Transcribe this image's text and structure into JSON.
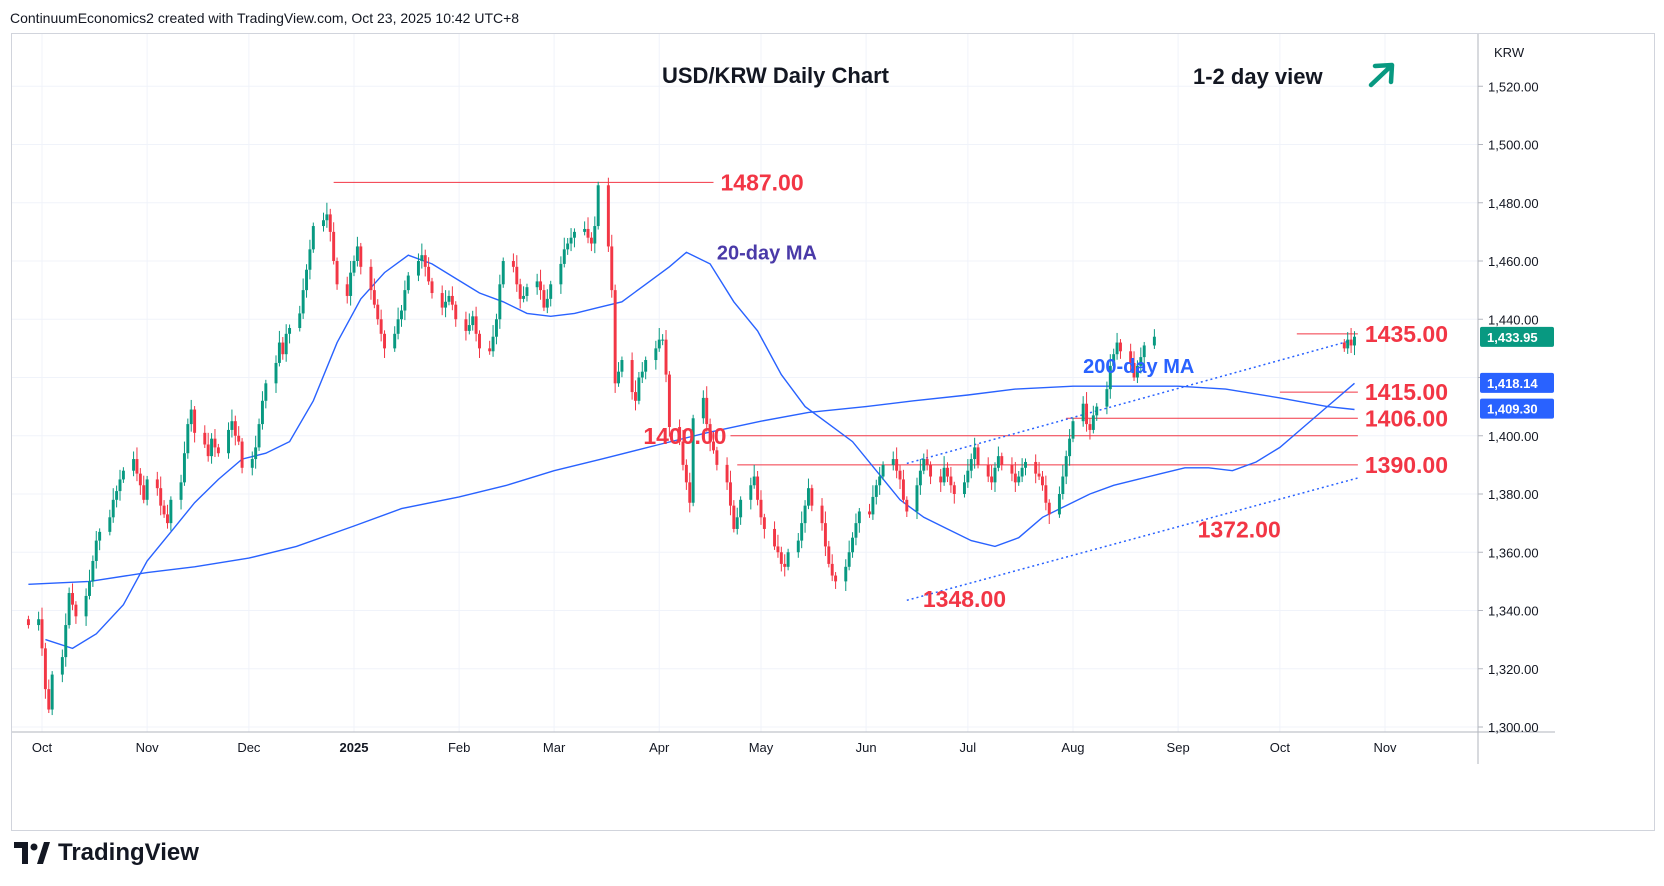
{
  "header": {
    "attribution": "ContinuumEconomics2 created with TradingView.com, Oct 23, 2025 10:42 UTC+8"
  },
  "footer": {
    "brand": "TradingView",
    "logo_icon": "tradingview-logo-icon"
  },
  "chart_data": {
    "type": "candlestick",
    "title": "USD/KRW Daily Chart",
    "view_label": "1-2 day view",
    "view_icon": "arrow-up-right-icon",
    "currency_label": "KRW",
    "ylim": [
      1300,
      1540
    ],
    "y_ticks": [
      "1,300.00",
      "1,320.00",
      "1,340.00",
      "1,360.00",
      "1,380.00",
      "1,400.00",
      "1,420.00",
      "1,440.00",
      "1,460.00",
      "1,480.00",
      "1,500.00",
      "1,520.00"
    ],
    "x_labels": [
      {
        "label": "Oct",
        "date": "2024-10-01"
      },
      {
        "label": "Nov",
        "date": "2024-11-01"
      },
      {
        "label": "Dec",
        "date": "2024-12-01"
      },
      {
        "label": "2025",
        "date": "2025-01-01",
        "bold": true
      },
      {
        "label": "Feb",
        "date": "2025-02-01"
      },
      {
        "label": "Mar",
        "date": "2025-03-01"
      },
      {
        "label": "Apr",
        "date": "2025-04-01"
      },
      {
        "label": "May",
        "date": "2025-05-01"
      },
      {
        "label": "Jun",
        "date": "2025-06-01"
      },
      {
        "label": "Jul",
        "date": "2025-07-01"
      },
      {
        "label": "Aug",
        "date": "2025-08-01"
      },
      {
        "label": "Sep",
        "date": "2025-09-01"
      },
      {
        "label": "Oct",
        "date": "2025-10-01"
      },
      {
        "label": "Nov",
        "date": "2025-11-01"
      }
    ],
    "colors": {
      "up": "#089981",
      "down": "#f23645",
      "ma20": "#2962ff",
      "ma200": "#2962ff",
      "levels": "#f23645",
      "channel": "#2962ff",
      "arrow": "#089981"
    },
    "price_badges": [
      {
        "value": 1433.95,
        "label": "1,433.95",
        "color": "#089981"
      },
      {
        "value": 1418.14,
        "label": "1,418.14",
        "color": "#2962ff"
      },
      {
        "value": 1409.3,
        "label": "1,409.30",
        "color": "#2962ff"
      }
    ],
    "levels": [
      {
        "value": 1487.0,
        "label": "1487.00",
        "from": "2024-12-26",
        "to": "2025-04-17",
        "label_side": "right"
      },
      {
        "value": 1435.0,
        "label": "1435.00",
        "from": "2025-10-06",
        "to": "2025-10-24",
        "label_side": "right"
      },
      {
        "value": 1415.0,
        "label": "1415.00",
        "from": "2025-10-01",
        "to": "2025-10-24",
        "label_side": "right"
      },
      {
        "value": 1406.0,
        "label": "1406.00",
        "from": "2025-07-30",
        "to": "2025-10-24",
        "label_side": "right"
      },
      {
        "value": 1400.0,
        "label": "1400.00",
        "from": "2025-04-22",
        "to": "2025-10-24",
        "label_side": "left"
      },
      {
        "value": 1390.0,
        "label": "1390.00",
        "from": "2025-04-24",
        "to": "2025-10-24",
        "label_side": "right"
      }
    ],
    "point_labels": [
      {
        "value": 1372.0,
        "label": "1372.00",
        "date": "2025-09-19"
      },
      {
        "value": 1348.0,
        "label": "1348.00",
        "date": "2025-06-30"
      }
    ],
    "channel_lines": [
      {
        "from": {
          "date": "2025-06-13",
          "value": 1390.5
        },
        "to": {
          "date": "2025-10-23",
          "value": 1433.0
        }
      },
      {
        "from": {
          "date": "2025-06-13",
          "value": 1343.5
        },
        "to": {
          "date": "2025-10-24",
          "value": 1385.5
        }
      }
    ],
    "ma_labels": [
      {
        "label": "20-day MA",
        "date": "2025-04-18",
        "value": 1460.5,
        "color": "#4a3aa8"
      },
      {
        "label": "200-day MA",
        "date": "2025-08-04",
        "value": 1421.5,
        "color": "#2962ff"
      }
    ],
    "series": [
      {
        "name": "20-day MA",
        "type": "line",
        "points": [
          [
            "2024-10-02",
            1330
          ],
          [
            "2024-10-10",
            1327
          ],
          [
            "2024-10-17",
            1332
          ],
          [
            "2024-10-25",
            1342
          ],
          [
            "2024-11-01",
            1357
          ],
          [
            "2024-11-08",
            1367
          ],
          [
            "2024-11-15",
            1377
          ],
          [
            "2024-11-22",
            1385
          ],
          [
            "2024-11-29",
            1392
          ],
          [
            "2024-12-06",
            1394
          ],
          [
            "2024-12-13",
            1398
          ],
          [
            "2024-12-20",
            1412
          ],
          [
            "2024-12-27",
            1432
          ],
          [
            "2025-01-03",
            1447
          ],
          [
            "2025-01-10",
            1456
          ],
          [
            "2025-01-17",
            1462
          ],
          [
            "2025-01-24",
            1459
          ],
          [
            "2025-01-31",
            1454
          ],
          [
            "2025-02-07",
            1449
          ],
          [
            "2025-02-14",
            1446
          ],
          [
            "2025-02-21",
            1442
          ],
          [
            "2025-02-28",
            1441
          ],
          [
            "2025-03-07",
            1442
          ],
          [
            "2025-03-14",
            1444
          ],
          [
            "2025-03-21",
            1446
          ],
          [
            "2025-03-28",
            1452
          ],
          [
            "2025-04-04",
            1458
          ],
          [
            "2025-04-09",
            1463
          ],
          [
            "2025-04-16",
            1459
          ],
          [
            "2025-04-23",
            1446
          ],
          [
            "2025-04-30",
            1436
          ],
          [
            "2025-05-07",
            1421
          ],
          [
            "2025-05-14",
            1410
          ],
          [
            "2025-05-21",
            1404
          ],
          [
            "2025-05-28",
            1398
          ],
          [
            "2025-06-04",
            1388
          ],
          [
            "2025-06-11",
            1378
          ],
          [
            "2025-06-18",
            1372
          ],
          [
            "2025-06-25",
            1368
          ],
          [
            "2025-07-02",
            1364
          ],
          [
            "2025-07-09",
            1362
          ],
          [
            "2025-07-16",
            1365
          ],
          [
            "2025-07-23",
            1372
          ],
          [
            "2025-07-30",
            1376
          ],
          [
            "2025-08-06",
            1380
          ],
          [
            "2025-08-13",
            1383
          ],
          [
            "2025-08-20",
            1385
          ],
          [
            "2025-08-27",
            1387
          ],
          [
            "2025-09-03",
            1389
          ],
          [
            "2025-09-10",
            1389
          ],
          [
            "2025-09-17",
            1388
          ],
          [
            "2025-09-24",
            1391
          ],
          [
            "2025-10-01",
            1396
          ],
          [
            "2025-10-08",
            1403
          ],
          [
            "2025-10-15",
            1410
          ],
          [
            "2025-10-23",
            1418
          ]
        ]
      },
      {
        "name": "200-day MA",
        "type": "line",
        "points": [
          [
            "2024-09-27",
            1349
          ],
          [
            "2024-10-15",
            1350
          ],
          [
            "2024-11-01",
            1353
          ],
          [
            "2024-11-15",
            1355
          ],
          [
            "2024-12-01",
            1358
          ],
          [
            "2024-12-15",
            1362
          ],
          [
            "2025-01-01",
            1369
          ],
          [
            "2025-01-15",
            1375
          ],
          [
            "2025-02-01",
            1379
          ],
          [
            "2025-02-15",
            1383
          ],
          [
            "2025-03-01",
            1388
          ],
          [
            "2025-03-15",
            1392
          ],
          [
            "2025-04-01",
            1397
          ],
          [
            "2025-04-15",
            1401
          ],
          [
            "2025-05-01",
            1405
          ],
          [
            "2025-05-15",
            1408
          ],
          [
            "2025-06-01",
            1410
          ],
          [
            "2025-06-15",
            1412
          ],
          [
            "2025-07-01",
            1414
          ],
          [
            "2025-07-15",
            1416
          ],
          [
            "2025-08-01",
            1417
          ],
          [
            "2025-08-15",
            1417
          ],
          [
            "2025-09-01",
            1417
          ],
          [
            "2025-09-15",
            1416
          ],
          [
            "2025-10-01",
            1413
          ],
          [
            "2025-10-15",
            1410
          ],
          [
            "2025-10-23",
            1409
          ]
        ]
      },
      {
        "name": "USD/KRW",
        "type": "candlestick",
        "segments": [
          {
            "start": "2024-09-27",
            "closes": [
              1335,
              1337,
              1327,
              1313,
              1306,
              1318,
              1324,
              1335,
              1346,
              1342,
              1338,
              1345,
              1350,
              1357,
              1364,
              1367,
              1372,
              1378,
              1381,
              1385,
              1388,
              1392,
              1387,
              1383,
              1378,
              1385,
              1382,
              1376,
              1373,
              1370,
              1378,
              1384,
              1394,
              1404,
              1409,
              1401,
              1397,
              1393,
              1399,
              1396,
              1394,
              1402,
              1405,
              1400,
              1398,
              1389,
              1392,
              1396,
              1404,
              1412,
              1418,
              1425,
              1432,
              1428,
              1435,
              1437,
              1442,
              1450,
              1457,
              1464,
              1472,
              1474,
              1476,
              1470,
              1460,
              1452,
              1448,
              1456,
              1460,
              1465,
              1458,
              1450,
              1445,
              1440,
              1435,
              1430,
              1435,
              1440,
              1443,
              1450,
              1455,
              1460,
              1462,
              1458,
              1453,
              1449,
              1444,
              1446,
              1448,
              1445,
              1440,
              1436,
              1438,
              1441,
              1435,
              1430,
              1429,
              1434,
              1440,
              1452,
              1460,
              1458,
              1452,
              1447,
              1448,
              1451,
              1453,
              1450,
              1444,
              1447,
              1452,
              1459,
              1464,
              1466,
              1468,
              1470,
              1471,
              1468,
              1466,
              1472,
              1486,
              1465,
              1450,
              1418,
              1422,
              1426,
              1415,
              1412,
              1420,
              1422,
              1426,
              1430,
              1433,
              1433,
              1421,
              1403,
              1398,
              1390,
              1384,
              1377,
              1406,
              1413,
              1404,
              1398,
              1395,
              1390,
              1384,
              1376,
              1368,
              1372,
              1378,
              1383,
              1386,
              1378,
              1372,
              1368,
              1362,
              1360,
              1356,
              1355,
              1360,
              1364,
              1370,
              1376,
              1382,
              1376,
              1370,
              1362,
              1356,
              1352,
              1350,
              1355,
              1360,
              1365,
              1370,
              1374,
              1373,
              1379,
              1383,
              1386,
              1390,
              1392,
              1388,
              1385,
              1378,
              1374,
              1383,
              1388,
              1392,
              1390,
              1386,
              1384,
              1389,
              1386,
              1383,
              1380,
              1384,
              1388,
              1392,
              1396,
              1390,
              1386,
              1384,
              1389,
              1393,
              1390,
              1387,
              1384,
              1386,
              1389,
              1391,
              1387,
              1386,
              1383,
              1377,
              1373,
              1380,
              1386,
              1393,
              1399,
              1405,
              1411,
              1404,
              1402,
              1407,
              1410,
              1416,
              1424,
              1428,
              1432,
              1429,
              1425,
              1420,
              1424,
              1427,
              1431,
              1434
            ]
          },
          {
            "start": "2025-10-20",
            "closes": [
              1430,
              1433,
              1431,
              1434
            ],
            "pad_after": 1
          }
        ]
      }
    ]
  }
}
